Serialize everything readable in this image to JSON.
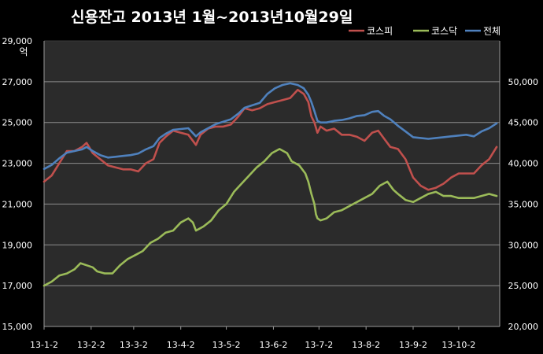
{
  "chart_data": {
    "type": "line",
    "title": "신용잔고 2013년 1월~2013년10월29일",
    "y_left_unit": "억",
    "y_left_range": [
      15000,
      29000
    ],
    "y_left_ticks": [
      "15,000",
      "17,000",
      "19,000",
      "21,000",
      "23,000",
      "25,000",
      "27,000",
      "29,000"
    ],
    "y_left_tick_values": [
      15000,
      17000,
      19000,
      21000,
      23000,
      25000,
      27000,
      29000
    ],
    "y_right_range": [
      20000,
      55000
    ],
    "y_right_ticks": [
      "20,000",
      "25,000",
      "30,000",
      "35,000",
      "40,000",
      "45,000",
      "50,000"
    ],
    "y_right_tick_values": [
      20000,
      25000,
      30000,
      35000,
      40000,
      45000,
      50000
    ],
    "x_ticks": [
      "13-1-2",
      "13-2-2",
      "13-3-2",
      "13-4-2",
      "13-5-2",
      "13-6-2",
      "13-7-2",
      "13-8-2",
      "13-9-2",
      "13-10-2"
    ],
    "x_tick_positions": [
      0,
      31,
      59,
      90,
      120,
      151,
      181,
      212,
      243,
      273
    ],
    "x_range": [
      0,
      300
    ],
    "grid": true,
    "legend_position": "top-right",
    "series": [
      {
        "name": "코스피",
        "axis": "left",
        "color": "#c0504d",
        "points": [
          [
            0,
            22100
          ],
          [
            5,
            22400
          ],
          [
            10,
            23000
          ],
          [
            15,
            23600
          ],
          [
            20,
            23600
          ],
          [
            25,
            23800
          ],
          [
            28,
            24000
          ],
          [
            32,
            23500
          ],
          [
            37,
            23200
          ],
          [
            42,
            22900
          ],
          [
            47,
            22800
          ],
          [
            52,
            22700
          ],
          [
            57,
            22700
          ],
          [
            62,
            22600
          ],
          [
            67,
            23000
          ],
          [
            72,
            23200
          ],
          [
            76,
            24000
          ],
          [
            80,
            24300
          ],
          [
            85,
            24600
          ],
          [
            90,
            24500
          ],
          [
            95,
            24400
          ],
          [
            100,
            23900
          ],
          [
            103,
            24400
          ],
          [
            108,
            24700
          ],
          [
            113,
            24800
          ],
          [
            118,
            24800
          ],
          [
            123,
            24900
          ],
          [
            128,
            25300
          ],
          [
            132,
            25700
          ],
          [
            137,
            25600
          ],
          [
            142,
            25700
          ],
          [
            147,
            25900
          ],
          [
            152,
            26000
          ],
          [
            157,
            26100
          ],
          [
            162,
            26200
          ],
          [
            167,
            26600
          ],
          [
            171,
            26400
          ],
          [
            174,
            26000
          ],
          [
            176,
            25300
          ],
          [
            178,
            25000
          ],
          [
            180,
            24500
          ],
          [
            182,
            24800
          ],
          [
            186,
            24600
          ],
          [
            191,
            24700
          ],
          [
            196,
            24400
          ],
          [
            201,
            24400
          ],
          [
            206,
            24300
          ],
          [
            211,
            24100
          ],
          [
            216,
            24500
          ],
          [
            220,
            24600
          ],
          [
            224,
            24200
          ],
          [
            228,
            23800
          ],
          [
            233,
            23700
          ],
          [
            238,
            23200
          ],
          [
            243,
            22300
          ],
          [
            248,
            21900
          ],
          [
            253,
            21700
          ],
          [
            258,
            21800
          ],
          [
            263,
            22000
          ],
          [
            268,
            22300
          ],
          [
            273,
            22500
          ],
          [
            278,
            22500
          ],
          [
            283,
            22500
          ],
          [
            288,
            22900
          ],
          [
            293,
            23200
          ],
          [
            298,
            23800
          ]
        ]
      },
      {
        "name": "코스닥",
        "axis": "left",
        "color": "#9bbb59",
        "points": [
          [
            0,
            17000
          ],
          [
            5,
            17200
          ],
          [
            10,
            17500
          ],
          [
            15,
            17600
          ],
          [
            20,
            17800
          ],
          [
            24,
            18100
          ],
          [
            28,
            18000
          ],
          [
            32,
            17900
          ],
          [
            35,
            17700
          ],
          [
            40,
            17600
          ],
          [
            45,
            17600
          ],
          [
            50,
            18000
          ],
          [
            55,
            18300
          ],
          [
            60,
            18500
          ],
          [
            65,
            18700
          ],
          [
            70,
            19100
          ],
          [
            75,
            19300
          ],
          [
            80,
            19600
          ],
          [
            85,
            19700
          ],
          [
            90,
            20100
          ],
          [
            95,
            20300
          ],
          [
            98,
            20100
          ],
          [
            100,
            19700
          ],
          [
            105,
            19900
          ],
          [
            110,
            20200
          ],
          [
            115,
            20700
          ],
          [
            120,
            21000
          ],
          [
            125,
            21600
          ],
          [
            130,
            22000
          ],
          [
            135,
            22400
          ],
          [
            140,
            22800
          ],
          [
            145,
            23100
          ],
          [
            150,
            23500
          ],
          [
            155,
            23700
          ],
          [
            160,
            23500
          ],
          [
            163,
            23100
          ],
          [
            168,
            22900
          ],
          [
            172,
            22500
          ],
          [
            174,
            22100
          ],
          [
            176,
            21500
          ],
          [
            178,
            21000
          ],
          [
            179,
            20500
          ],
          [
            180,
            20300
          ],
          [
            182,
            20200
          ],
          [
            186,
            20300
          ],
          [
            191,
            20600
          ],
          [
            196,
            20700
          ],
          [
            201,
            20900
          ],
          [
            206,
            21100
          ],
          [
            211,
            21300
          ],
          [
            216,
            21500
          ],
          [
            221,
            21900
          ],
          [
            226,
            22100
          ],
          [
            230,
            21700
          ],
          [
            233,
            21500
          ],
          [
            238,
            21200
          ],
          [
            243,
            21100
          ],
          [
            248,
            21300
          ],
          [
            253,
            21500
          ],
          [
            258,
            21600
          ],
          [
            263,
            21400
          ],
          [
            268,
            21400
          ],
          [
            273,
            21300
          ],
          [
            278,
            21300
          ],
          [
            283,
            21300
          ],
          [
            288,
            21400
          ],
          [
            293,
            21500
          ],
          [
            298,
            21400
          ]
        ]
      },
      {
        "name": "전체",
        "axis": "right",
        "color": "#4f81bd",
        "points": [
          [
            0,
            39300
          ],
          [
            5,
            39800
          ],
          [
            10,
            40600
          ],
          [
            15,
            41300
          ],
          [
            20,
            41500
          ],
          [
            25,
            41700
          ],
          [
            28,
            42000
          ],
          [
            32,
            41500
          ],
          [
            37,
            41000
          ],
          [
            42,
            40700
          ],
          [
            47,
            40800
          ],
          [
            52,
            40900
          ],
          [
            57,
            41000
          ],
          [
            62,
            41200
          ],
          [
            67,
            41700
          ],
          [
            72,
            42100
          ],
          [
            76,
            43100
          ],
          [
            80,
            43600
          ],
          [
            85,
            44100
          ],
          [
            90,
            44200
          ],
          [
            95,
            44300
          ],
          [
            100,
            43300
          ],
          [
            103,
            43800
          ],
          [
            108,
            44300
          ],
          [
            113,
            44800
          ],
          [
            118,
            45100
          ],
          [
            123,
            45400
          ],
          [
            128,
            46100
          ],
          [
            132,
            46800
          ],
          [
            137,
            47100
          ],
          [
            142,
            47400
          ],
          [
            147,
            48500
          ],
          [
            152,
            49200
          ],
          [
            157,
            49600
          ],
          [
            162,
            49800
          ],
          [
            167,
            49600
          ],
          [
            171,
            49200
          ],
          [
            174,
            48400
          ],
          [
            176,
            47500
          ],
          [
            178,
            46400
          ],
          [
            180,
            45200
          ],
          [
            182,
            45000
          ],
          [
            186,
            45000
          ],
          [
            191,
            45200
          ],
          [
            196,
            45300
          ],
          [
            201,
            45500
          ],
          [
            206,
            45800
          ],
          [
            211,
            45900
          ],
          [
            216,
            46300
          ],
          [
            220,
            46400
          ],
          [
            224,
            45800
          ],
          [
            228,
            45400
          ],
          [
            233,
            44600
          ],
          [
            238,
            43900
          ],
          [
            243,
            43200
          ],
          [
            248,
            43100
          ],
          [
            253,
            43000
          ],
          [
            258,
            43100
          ],
          [
            263,
            43200
          ],
          [
            268,
            43300
          ],
          [
            273,
            43400
          ],
          [
            278,
            43500
          ],
          [
            283,
            43300
          ],
          [
            288,
            43900
          ],
          [
            293,
            44300
          ],
          [
            298,
            44900
          ]
        ]
      }
    ]
  }
}
